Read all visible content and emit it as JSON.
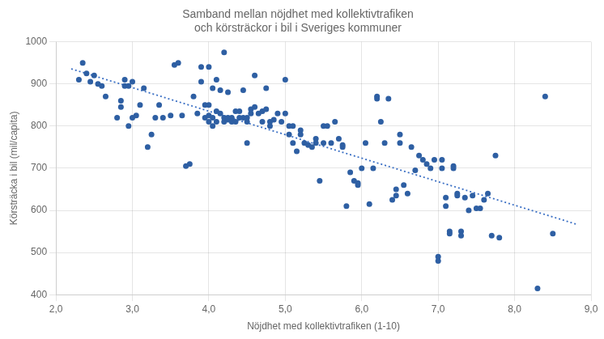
{
  "chart_data": {
    "type": "scatter",
    "title": "Samband mellan nöjdhet med kollektivtrafiken\noch körsträckor i bil i Sveriges kommuner",
    "x_label": "Nöjdhet med kollektivtrafiken (1-10)",
    "y_label": "Körsträcka i bil (mil/capita)",
    "xlim": [
      2.0,
      9.0
    ],
    "ylim": [
      400,
      1000
    ],
    "xticks": [
      {
        "value": 2.0,
        "label": "2,0"
      },
      {
        "value": 3.0,
        "label": "3,0"
      },
      {
        "value": 4.0,
        "label": "4,0"
      },
      {
        "value": 5.0,
        "label": "5,0"
      },
      {
        "value": 6.0,
        "label": "6,0"
      },
      {
        "value": 7.0,
        "label": "7,0"
      },
      {
        "value": 8.0,
        "label": "8,0"
      },
      {
        "value": 9.0,
        "label": "9,0"
      }
    ],
    "yticks": [
      400,
      500,
      600,
      700,
      800,
      900,
      1000
    ],
    "grid": true,
    "color": "#2e5fa3",
    "marker": "circle",
    "x": [
      2.3,
      2.35,
      2.4,
      2.45,
      2.5,
      2.55,
      2.6,
      2.65,
      2.8,
      2.85,
      2.85,
      2.9,
      2.9,
      2.95,
      2.95,
      3.0,
      3.0,
      3.05,
      3.1,
      3.15,
      3.2,
      3.25,
      3.3,
      3.35,
      3.4,
      3.5,
      3.55,
      3.6,
      3.65,
      3.7,
      3.75,
      3.8,
      3.85,
      3.9,
      3.9,
      3.95,
      3.95,
      4.0,
      4.0,
      4.0,
      4.0,
      4.05,
      4.05,
      4.05,
      4.1,
      4.1,
      4.1,
      4.15,
      4.15,
      4.2,
      4.2,
      4.2,
      4.25,
      4.25,
      4.25,
      4.3,
      4.3,
      4.35,
      4.35,
      4.4,
      4.4,
      4.45,
      4.45,
      4.5,
      4.5,
      4.5,
      4.55,
      4.55,
      4.6,
      4.6,
      4.65,
      4.7,
      4.7,
      4.75,
      4.75,
      4.8,
      4.8,
      4.85,
      4.9,
      4.95,
      5.0,
      5.0,
      5.05,
      5.05,
      5.1,
      5.1,
      5.15,
      5.2,
      5.2,
      5.25,
      5.3,
      5.35,
      5.4,
      5.4,
      5.45,
      5.5,
      5.5,
      5.55,
      5.6,
      5.65,
      5.7,
      5.75,
      5.75,
      5.8,
      5.85,
      5.9,
      5.95,
      5.95,
      6.0,
      6.05,
      6.1,
      6.15,
      6.2,
      6.2,
      6.25,
      6.3,
      6.35,
      6.4,
      6.45,
      6.45,
      6.5,
      6.5,
      6.55,
      6.6,
      6.65,
      6.7,
      6.75,
      6.8,
      6.85,
      6.9,
      6.95,
      7.0,
      7.0,
      7.05,
      7.05,
      7.1,
      7.1,
      7.15,
      7.15,
      7.2,
      7.2,
      7.25,
      7.25,
      7.3,
      7.3,
      7.35,
      7.4,
      7.45,
      7.5,
      7.55,
      7.6,
      7.65,
      7.7,
      7.75,
      7.8,
      8.3,
      8.4,
      8.5
    ],
    "values": [
      910,
      950,
      925,
      905,
      920,
      900,
      895,
      870,
      820,
      845,
      860,
      895,
      910,
      800,
      895,
      820,
      905,
      825,
      850,
      890,
      750,
      780,
      820,
      850,
      820,
      825,
      945,
      950,
      825,
      705,
      710,
      870,
      830,
      905,
      940,
      820,
      850,
      810,
      825,
      850,
      940,
      800,
      820,
      890,
      810,
      835,
      910,
      830,
      885,
      810,
      820,
      975,
      815,
      820,
      880,
      810,
      820,
      810,
      835,
      820,
      835,
      885,
      820,
      820,
      760,
      810,
      840,
      830,
      845,
      920,
      830,
      835,
      810,
      840,
      890,
      810,
      800,
      815,
      830,
      810,
      830,
      910,
      780,
      800,
      760,
      800,
      740,
      780,
      790,
      760,
      755,
      750,
      760,
      770,
      670,
      800,
      760,
      800,
      760,
      810,
      770,
      755,
      750,
      610,
      690,
      670,
      665,
      660,
      700,
      760,
      615,
      700,
      865,
      870,
      810,
      760,
      865,
      625,
      635,
      650,
      760,
      780,
      660,
      640,
      750,
      695,
      730,
      720,
      710,
      700,
      720,
      490,
      480,
      720,
      700,
      630,
      610,
      550,
      545,
      705,
      700,
      640,
      635,
      550,
      540,
      630,
      600,
      635,
      605,
      605,
      625,
      640,
      540,
      730,
      535,
      415,
      870,
      545
    ],
    "trend_line": {
      "x": [
        2.2,
        8.8
      ],
      "values": [
        935.796,
        567.637
      ],
      "color": "#3a6fc4",
      "line_style": "dotted"
    }
  }
}
